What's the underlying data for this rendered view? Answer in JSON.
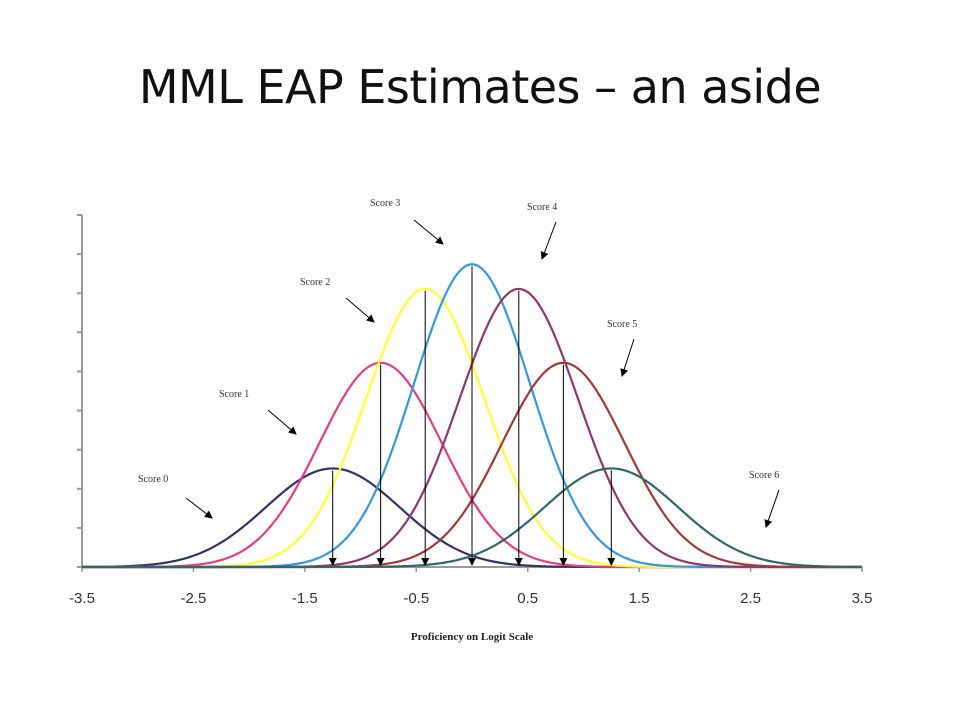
{
  "slide": {
    "title": "MML EAP Estimates – an aside"
  },
  "chart_data": {
    "type": "line",
    "title": "",
    "xlabel": "Proficiency on Logit Scale",
    "ylabel": "",
    "xlim": [
      -3.5,
      3.5
    ],
    "ylim": [
      0,
      1
    ],
    "x_ticks": [
      "-3.5",
      "-2.5",
      "-1.5",
      "-0.5",
      "0.5",
      "1.5",
      "2.5",
      "3.5"
    ],
    "grid": false,
    "legend": "none",
    "series": [
      {
        "name": "Score 0",
        "mean": -1.25,
        "sd": 0.6,
        "peak": 0.28,
        "color": "#333366"
      },
      {
        "name": "Score 1",
        "mean": -0.82,
        "sd": 0.55,
        "peak": 0.58,
        "color": "#e0407f"
      },
      {
        "name": "Score 2",
        "mean": -0.42,
        "sd": 0.53,
        "peak": 0.79,
        "color": "#ffff33"
      },
      {
        "name": "Score 3",
        "mean": 0.0,
        "sd": 0.52,
        "peak": 0.86,
        "color": "#3399dd"
      },
      {
        "name": "Score 4",
        "mean": 0.42,
        "sd": 0.53,
        "peak": 0.79,
        "color": "#8b3a6b"
      },
      {
        "name": "Score 5",
        "mean": 0.82,
        "sd": 0.55,
        "peak": 0.58,
        "color": "#a03a3a"
      },
      {
        "name": "Score 6",
        "mean": 1.25,
        "sd": 0.6,
        "peak": 0.28,
        "color": "#336666"
      }
    ]
  }
}
